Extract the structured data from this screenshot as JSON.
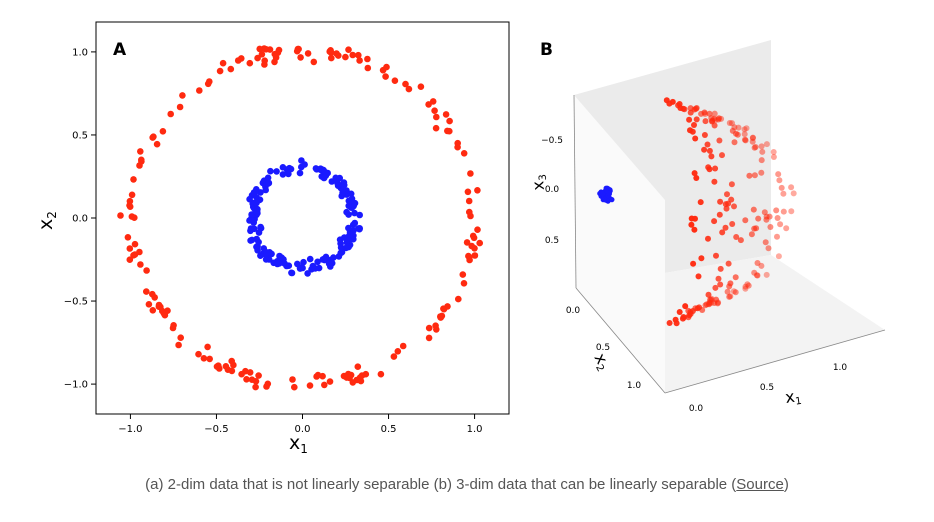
{
  "chart_data": [
    {
      "panel": "A",
      "type": "scatter",
      "xlabel": "x1",
      "ylabel": "x2",
      "xlim": [
        -1.2,
        1.2
      ],
      "ylim": [
        -1.18,
        1.18
      ],
      "xticks": [
        -1.0,
        -0.5,
        0.0,
        0.5,
        1.0
      ],
      "yticks": [
        -1.0,
        -0.5,
        0.0,
        0.5,
        1.0
      ],
      "xtick_labels": [
        "−1.0",
        "−0.5",
        "0.0",
        "0.5",
        "1.0"
      ],
      "ytick_labels": [
        "−1.0",
        "−0.5",
        "0.0",
        "0.5",
        "1.0"
      ],
      "series": [
        {
          "color": "#ff2a10",
          "shape": "ring",
          "radius": 1.0,
          "noise": 0.06,
          "n": 180
        },
        {
          "color": "#1a1aff",
          "shape": "ring",
          "radius": 0.3,
          "noise": 0.05,
          "n": 180
        }
      ]
    },
    {
      "panel": "B",
      "type": "scatter",
      "xlabel": "x1",
      "ylabel": "x2",
      "zlabel": "x3",
      "x_ticks": [
        "0.0",
        "0.5",
        "1.0"
      ],
      "y_ticks": [
        "0.0",
        "0.5",
        "1.0"
      ],
      "z_ticks": [
        "−0.5",
        "0.0",
        "0.5"
      ],
      "series": [
        {
          "color": "#ff2a10",
          "shape": "half-ring"
        },
        {
          "color": "#1a1aff",
          "shape": "cluster"
        }
      ]
    }
  ],
  "labels": {
    "panel_a": "A",
    "panel_b": "B",
    "a_xlabel": "x",
    "a_xlabel_sub": "1",
    "a_ylabel": "x",
    "a_ylabel_sub": "2",
    "b_x1": "x",
    "b_x1_sub": "1",
    "b_x2": "x",
    "b_x2_sub": "2",
    "b_x3": "x",
    "b_x3_sub": "3"
  },
  "caption": {
    "text": "(a) 2-dim data that is not linearly separable (b) 3-dim data that can be linearly separable (",
    "link": "Source",
    "close": ")"
  }
}
